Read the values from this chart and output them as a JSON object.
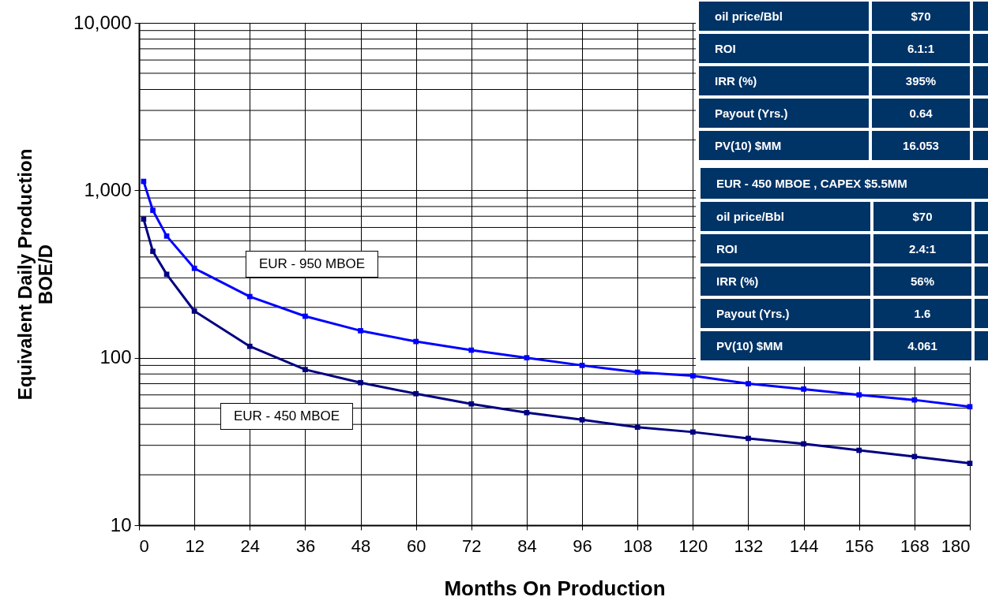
{
  "chart_data": {
    "type": "line",
    "xlabel": "Months On Production",
    "ylabel": "Equivalent Daily Production\nBOE/D",
    "x": [
      1,
      3,
      6,
      12,
      24,
      36,
      48,
      60,
      72,
      84,
      96,
      108,
      120,
      132,
      144,
      156,
      168,
      180
    ],
    "series": [
      {
        "color": "#0000ff",
        "values": [
          1130,
          759,
          533,
          342,
          232,
          177,
          145,
          125,
          111,
          100,
          90,
          82,
          78,
          70,
          65,
          60,
          56,
          51
        ]
      },
      {
        "color": "#000080",
        "values": [
          673,
          432,
          315,
          190,
          117,
          85,
          71,
          61,
          53,
          47,
          42.6,
          38.5,
          36,
          33,
          30.6,
          28,
          25.7,
          23.4
        ]
      }
    ],
    "log": "y",
    "grid": true,
    "marker": "square",
    "line_style": "solid",
    "xlim": [
      0,
      180
    ],
    "xticks": [
      0,
      12,
      24,
      36,
      48,
      60,
      72,
      84,
      96,
      108,
      120,
      132,
      144,
      156,
      168,
      180
    ],
    "ylim": [
      10,
      10000
    ],
    "yticks": [
      10,
      100,
      {
        "value": 1000,
        "label": "1,000"
      },
      {
        "value": 10000,
        "label": "10,000"
      }
    ],
    "annotations": [
      "EUR - 950 MBOE",
      "EUR - 450 MBOE",
      "oil price/Bbl",
      "$70",
      "ROI",
      "6.1:1",
      "IRR (%)",
      "395%",
      "Payout (Yrs.)",
      "0.64",
      "PV(10) $MM",
      "16.053",
      "EUR - 450 MBOE , CAPEX $5.5MM",
      "oil price/Bbl",
      "$70",
      "ROI",
      "2.4:1",
      "IRR (%)",
      "56%",
      "Payout (Yrs.)",
      "1.6",
      "PV(10) $MM",
      "4.061"
    ]
  }
}
